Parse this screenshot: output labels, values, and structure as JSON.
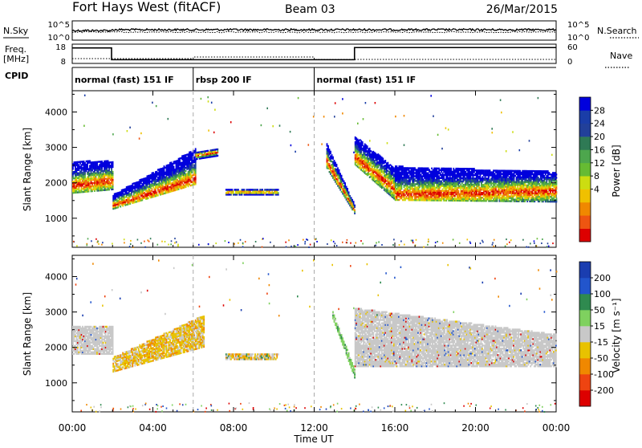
{
  "header": {
    "station": "Fort Hays West (fitACF)",
    "beam": "Beam 03",
    "date": "26/Mar/2015"
  },
  "top_panels": {
    "nsky_label": "N.Sky",
    "nsky_ticks": [
      "10^5",
      "10^0"
    ],
    "nsearch_label": "N.Search",
    "nsearch_ticks": [
      "10^5",
      "10^0"
    ],
    "freq_label_line1": "Freq.",
    "freq_label_line2": "[MHz]",
    "freq_ticks": [
      "18",
      "8"
    ],
    "nave_label": "Nave",
    "nave_ticks": [
      "60",
      "0"
    ],
    "cpid_label": "CPID",
    "cpid_segments": [
      {
        "label": "normal (fast) 151 IF",
        "start": 0,
        "end": 6
      },
      {
        "label": "rbsp 200 IF",
        "start": 6,
        "end": 12
      },
      {
        "label": "normal (fast) 151 IF",
        "start": 12,
        "end": 24
      }
    ]
  },
  "x_axis": {
    "label": "Time UT",
    "ticks": [
      "00:00",
      "04:00",
      "08:00",
      "12:00",
      "16:00",
      "20:00",
      "00:00"
    ],
    "range": [
      0,
      24
    ],
    "mode_boundaries": [
      6,
      12
    ]
  },
  "chart_data": [
    {
      "type": "heatmap",
      "parameter": "power",
      "ylabel": "Slant Range [km]",
      "yticks": [
        "4000",
        "3000",
        "2000",
        "1000"
      ],
      "ylim": [
        180,
        4600
      ],
      "colorbar": {
        "label": "Power [dB]",
        "ticks": [
          "28",
          "24",
          "20",
          "16",
          "12",
          "8",
          "4"
        ],
        "colors": [
          "#0000dd",
          "#1a3da8",
          "#22409a",
          "#2f7a55",
          "#4da64d",
          "#66bb33",
          "#ccdd11",
          "#f0c000",
          "#f08800",
          "#ee5511",
          "#dd0000"
        ]
      },
      "echo_bands": [
        {
          "t_start": 0.0,
          "t_end": 2.0,
          "lower_km": [
            1700,
            1800
          ],
          "upper_km": [
            2600,
            2600
          ],
          "peak_km": [
            1900,
            2050
          ]
        },
        {
          "t_start": 2.0,
          "t_end": 6.1,
          "lower_km": [
            1250,
            1950
          ],
          "upper_km": [
            1650,
            2950
          ],
          "peak_km": [
            1350,
            2100
          ]
        },
        {
          "t_start": 6.1,
          "t_end": 7.2,
          "lower_km": [
            2650,
            2750
          ],
          "upper_km": [
            2850,
            2950
          ],
          "peak_km": [
            2750,
            2850
          ]
        },
        {
          "t_start": 7.6,
          "t_end": 10.2,
          "lower_km": [
            1650,
            1650
          ],
          "upper_km": [
            1800,
            1800
          ],
          "peak_km": [
            1720,
            1720
          ]
        },
        {
          "t_start": 12.6,
          "t_end": 14.0,
          "lower_km": [
            2400,
            1100
          ],
          "upper_km": [
            3100,
            1350
          ],
          "peak_km": [
            2600,
            1200
          ]
        },
        {
          "t_start": 14.0,
          "t_end": 16.0,
          "lower_km": [
            2500,
            1500
          ],
          "upper_km": [
            3300,
            2400
          ],
          "peak_km": [
            2700,
            1800
          ]
        },
        {
          "t_start": 16.0,
          "t_end": 24.0,
          "lower_km": [
            1500,
            1450
          ],
          "upper_km": [
            2450,
            2300
          ],
          "peak_km": [
            1650,
            1750
          ]
        }
      ]
    },
    {
      "type": "heatmap",
      "parameter": "velocity",
      "ylabel": "Slant Range [km]",
      "yticks": [
        "4000",
        "3000",
        "2000",
        "1000"
      ],
      "ylim": [
        180,
        4600
      ],
      "colorbar": {
        "label": "Velocity [m s⁻¹]",
        "ticks": [
          "200",
          "100",
          "50",
          "15",
          "-15",
          "-50",
          "-100",
          "-200"
        ],
        "colors": [
          "#1a3db0",
          "#2255cc",
          "#2f8a4f",
          "#7fd15f",
          "#c8c8c8",
          "#e8c200",
          "#f08800",
          "#ee4411",
          "#dd0000"
        ]
      },
      "echo_bands": [
        {
          "t_start": 0.0,
          "t_end": 2.0,
          "lower_km": [
            1800,
            1800
          ],
          "upper_km": [
            2600,
            2600
          ],
          "dominant": "ground"
        },
        {
          "t_start": 2.0,
          "t_end": 6.5,
          "lower_km": [
            1300,
            2000
          ],
          "upper_km": [
            1700,
            2900
          ],
          "dominant": "negative"
        },
        {
          "t_start": 7.6,
          "t_end": 10.2,
          "lower_km": [
            1650,
            1650
          ],
          "upper_km": [
            1800,
            1800
          ],
          "dominant": "mixed"
        },
        {
          "t_start": 12.9,
          "t_end": 14.0,
          "lower_km": [
            2800,
            1100
          ],
          "upper_km": [
            3000,
            1350
          ],
          "dominant": "positive"
        },
        {
          "t_start": 14.0,
          "t_end": 24.0,
          "lower_km": [
            1450,
            1450
          ],
          "upper_km": [
            3100,
            2350
          ],
          "dominant": "ground"
        }
      ]
    }
  ]
}
